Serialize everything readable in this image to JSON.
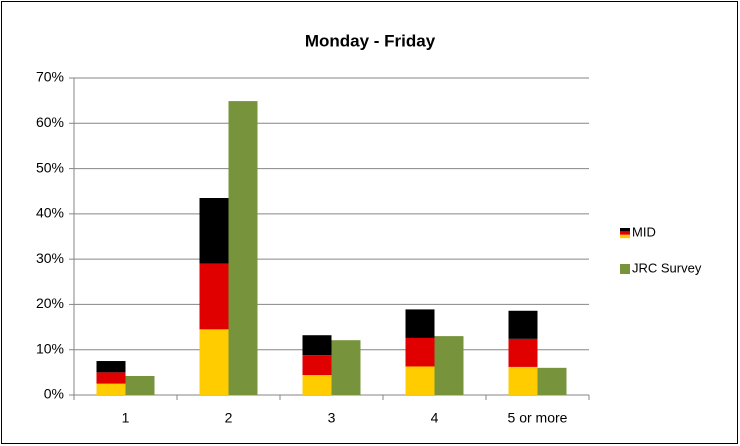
{
  "chart_data": {
    "type": "bar",
    "title": "Monday - Friday",
    "categories": [
      "1",
      "2",
      "3",
      "4",
      "5 or more"
    ],
    "series": [
      {
        "name": "MID",
        "colors": [
          "#ffcc00",
          "#e00000",
          "#000000"
        ],
        "values": [
          [
            2.5,
            2.5,
            2.5
          ],
          [
            14.5,
            14.5,
            14.5
          ],
          [
            4.4,
            4.4,
            4.4
          ],
          [
            6.3,
            6.3,
            6.3
          ],
          [
            6.2,
            6.2,
            6.2
          ]
        ]
      },
      {
        "name": "JRC Survey",
        "color": "#77933c",
        "values": [
          4.2,
          64.9,
          12.1,
          13,
          6
        ]
      }
    ],
    "ylim": [
      0,
      70
    ],
    "yticks": [
      {
        "value": 0,
        "label": "0%"
      },
      {
        "value": 10,
        "label": "10%"
      },
      {
        "value": 20,
        "label": "20%"
      },
      {
        "value": 30,
        "label": "30%"
      },
      {
        "value": 40,
        "label": "40%"
      },
      {
        "value": 50,
        "label": "50%"
      },
      {
        "value": 60,
        "label": "60%"
      },
      {
        "value": 70,
        "label": "70%"
      }
    ],
    "grid": true,
    "legend": "right"
  }
}
